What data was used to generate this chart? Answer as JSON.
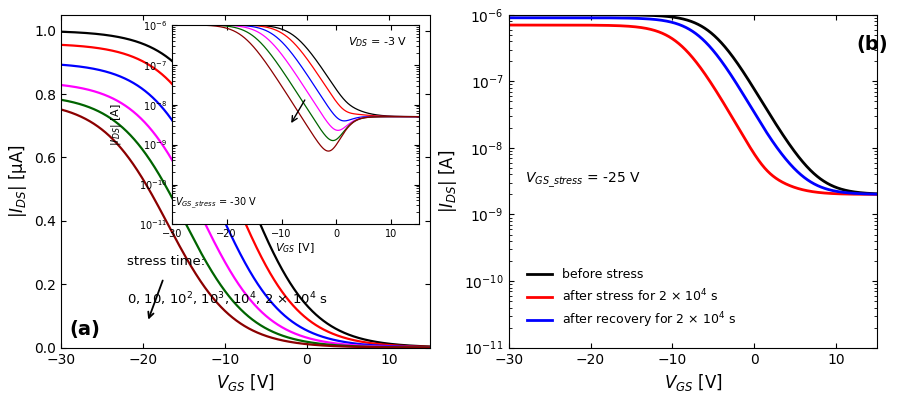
{
  "panel_a": {
    "xlabel": "$V_{GS}$ [V]",
    "ylabel": "$|I_{DS}|$ [μA]",
    "label": "(a)",
    "xlim": [
      -30,
      15
    ],
    "ylim": [
      0,
      1.05
    ],
    "xticks": [
      -30,
      -20,
      -10,
      0,
      10
    ],
    "yticks": [
      0.0,
      0.2,
      0.4,
      0.6,
      0.8,
      1.0
    ],
    "colors": [
      "#000000",
      "#ff0000",
      "#0000ff",
      "#ff00ff",
      "#006400",
      "#8B0000"
    ],
    "stress_label_line1": "stress time:",
    "stress_label_line2": "0, 10, 10$^2$, 10$^3$, 10$^4$, 2 × 10$^4$ s"
  },
  "inset": {
    "xlabel": "$V_{GS}$ [V]",
    "ylabel": "$|I_{DS}|$ [A]",
    "xlim": [
      -30,
      15
    ],
    "ylim_log": [
      -11,
      -6
    ],
    "xticks": [
      -30,
      -20,
      -10,
      0,
      10
    ],
    "colors": [
      "#000000",
      "#ff0000",
      "#0000ff",
      "#ff00ff",
      "#006400",
      "#8B0000"
    ],
    "vds_label": "$V_{DS}$ = -3 V",
    "vgs_stress_label": "$V_{GS\\_stress}$ = -30 V"
  },
  "panel_b": {
    "xlabel": "$V_{GS}$ [V]",
    "ylabel": "$|I_{DS}|$ [A]",
    "label": "(b)",
    "xlim": [
      -30,
      15
    ],
    "ylim_log": [
      -11,
      -6
    ],
    "xticks": [
      -30,
      -20,
      -10,
      0,
      10
    ],
    "colors": [
      "#000000",
      "#ff0000",
      "#0000ff"
    ],
    "vgs_stress_label": "$V_{GS\\_stress}$ = -25 V",
    "legend_labels": [
      "before stress",
      "after stress for 2 × 10$^4$ s",
      "after recovery for 2 × 10$^4$ s"
    ]
  }
}
